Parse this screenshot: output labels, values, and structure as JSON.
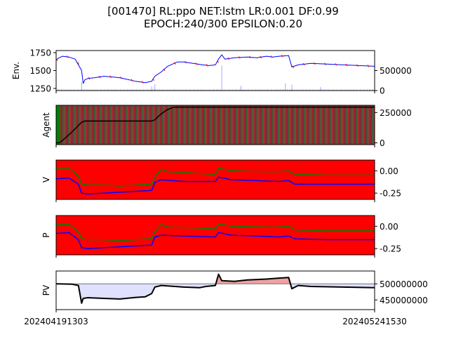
{
  "title_line1": "[001470] RL:ppo NET:lstm LR:0.001 DF:0.99",
  "title_line2": "EPOCH:240/300 EPSILON:0.20",
  "x_start_label": "202404191303",
  "x_end_label": "202405241530",
  "colors": {
    "red": "#ff0000",
    "green": "#008000",
    "blue": "#0000ff",
    "black": "#000000",
    "lavender": "#e0e0ff",
    "salmon": "#f0a0a0",
    "gray": "#808080"
  },
  "chart_data": [
    {
      "type": "line",
      "ylabel": "Env.",
      "left_ticks": [
        "1750",
        "1500",
        "1250"
      ],
      "left_ylim": [
        1220,
        1780
      ],
      "right_ticks": [
        "500000",
        "0"
      ],
      "right_ylim": [
        0,
        1000000
      ],
      "price_points": [
        [
          0,
          1650
        ],
        [
          0.01,
          1680
        ],
        [
          0.02,
          1700
        ],
        [
          0.04,
          1690
        ],
        [
          0.06,
          1660
        ],
        [
          0.07,
          1580
        ],
        [
          0.08,
          1500
        ],
        [
          0.085,
          1320
        ],
        [
          0.09,
          1370
        ],
        [
          0.1,
          1390
        ],
        [
          0.12,
          1400
        ],
        [
          0.15,
          1420
        ],
        [
          0.18,
          1410
        ],
        [
          0.2,
          1400
        ],
        [
          0.22,
          1380
        ],
        [
          0.25,
          1350
        ],
        [
          0.28,
          1330
        ],
        [
          0.3,
          1350
        ],
        [
          0.31,
          1420
        ],
        [
          0.33,
          1480
        ],
        [
          0.35,
          1560
        ],
        [
          0.38,
          1620
        ],
        [
          0.4,
          1620
        ],
        [
          0.43,
          1600
        ],
        [
          0.46,
          1580
        ],
        [
          0.48,
          1570
        ],
        [
          0.5,
          1580
        ],
        [
          0.51,
          1660
        ],
        [
          0.52,
          1720
        ],
        [
          0.53,
          1660
        ],
        [
          0.56,
          1680
        ],
        [
          0.6,
          1690
        ],
        [
          0.63,
          1680
        ],
        [
          0.66,
          1700
        ],
        [
          0.68,
          1690
        ],
        [
          0.7,
          1700
        ],
        [
          0.73,
          1710
        ],
        [
          0.74,
          1550
        ],
        [
          0.76,
          1580
        ],
        [
          0.8,
          1600
        ],
        [
          0.85,
          1590
        ],
        [
          0.9,
          1580
        ],
        [
          0.95,
          1570
        ],
        [
          1,
          1560
        ]
      ],
      "volume_spikes": [
        [
          0.08,
          220000
        ],
        [
          0.3,
          100000
        ],
        [
          0.31,
          160000
        ],
        [
          0.52,
          620000
        ],
        [
          0.58,
          120000
        ],
        [
          0.72,
          180000
        ],
        [
          0.74,
          150000
        ],
        [
          0.83,
          90000
        ]
      ]
    },
    {
      "type": "area",
      "ylabel": "Agent",
      "right_ticks": [
        "250000",
        "0"
      ],
      "right_ylim": [
        -15000,
        310000
      ],
      "position_points": [
        [
          0,
          0
        ],
        [
          0.01,
          0
        ],
        [
          0.02,
          20000
        ],
        [
          0.05,
          90000
        ],
        [
          0.08,
          170000
        ],
        [
          0.09,
          180000
        ],
        [
          0.3,
          180000
        ],
        [
          0.31,
          190000
        ],
        [
          0.33,
          240000
        ],
        [
          0.35,
          275000
        ],
        [
          0.37,
          295000
        ],
        [
          0.5,
          295000
        ],
        [
          1,
          295000
        ]
      ]
    },
    {
      "type": "line",
      "ylabel": "V",
      "right_ticks": [
        "0.00",
        "-0.25"
      ],
      "ylim": [
        -0.32,
        0.12
      ],
      "series": [
        {
          "points": [
            [
              0,
              0.03
            ],
            [
              0.04,
              0.03
            ],
            [
              0.07,
              -0.06
            ],
            [
              0.08,
              -0.15
            ],
            [
              0.1,
              -0.16
            ],
            [
              0.15,
              -0.16
            ],
            [
              0.2,
              -0.17
            ],
            [
              0.25,
              -0.16
            ],
            [
              0.3,
              -0.15
            ],
            [
              0.31,
              -0.07
            ],
            [
              0.33,
              0.02
            ],
            [
              0.35,
              -0.01
            ],
            [
              0.45,
              -0.03
            ],
            [
              0.5,
              -0.04
            ],
            [
              0.51,
              0.03
            ],
            [
              0.55,
              0.0
            ],
            [
              0.65,
              -0.01
            ],
            [
              0.7,
              -0.01
            ],
            [
              0.73,
              0.0
            ],
            [
              0.75,
              -0.04
            ],
            [
              0.85,
              -0.05
            ],
            [
              0.95,
              -0.05
            ],
            [
              1,
              -0.05
            ]
          ]
        },
        {
          "points": [
            [
              0,
              -0.09
            ],
            [
              0.04,
              -0.08
            ],
            [
              0.07,
              -0.15
            ],
            [
              0.08,
              -0.25
            ],
            [
              0.1,
              -0.26
            ],
            [
              0.2,
              -0.24
            ],
            [
              0.3,
              -0.22
            ],
            [
              0.31,
              -0.13
            ],
            [
              0.33,
              -0.1
            ],
            [
              0.4,
              -0.12
            ],
            [
              0.5,
              -0.12
            ],
            [
              0.51,
              -0.07
            ],
            [
              0.55,
              -0.1
            ],
            [
              0.7,
              -0.12
            ],
            [
              0.73,
              -0.11
            ],
            [
              0.75,
              -0.15
            ],
            [
              0.85,
              -0.15
            ],
            [
              0.95,
              -0.15
            ],
            [
              1,
              -0.15
            ]
          ]
        }
      ]
    },
    {
      "type": "line",
      "ylabel": "P",
      "right_ticks": [
        "0.00",
        "-0.25"
      ],
      "ylim": [
        -0.32,
        0.12
      ],
      "series": [
        {
          "points": [
            [
              0,
              0.02
            ],
            [
              0.04,
              0.02
            ],
            [
              0.07,
              -0.06
            ],
            [
              0.08,
              -0.14
            ],
            [
              0.1,
              -0.15
            ],
            [
              0.15,
              -0.15
            ],
            [
              0.2,
              -0.16
            ],
            [
              0.25,
              -0.15
            ],
            [
              0.3,
              -0.14
            ],
            [
              0.31,
              -0.06
            ],
            [
              0.33,
              0.02
            ],
            [
              0.35,
              -0.01
            ],
            [
              0.45,
              -0.02
            ],
            [
              0.5,
              -0.03
            ],
            [
              0.51,
              0.03
            ],
            [
              0.55,
              0.0
            ],
            [
              0.65,
              -0.01
            ],
            [
              0.7,
              -0.01
            ],
            [
              0.73,
              0.0
            ],
            [
              0.75,
              -0.04
            ],
            [
              0.85,
              -0.05
            ],
            [
              0.95,
              -0.05
            ],
            [
              1,
              -0.05
            ]
          ]
        },
        {
          "points": [
            [
              0,
              -0.08
            ],
            [
              0.04,
              -0.07
            ],
            [
              0.07,
              -0.15
            ],
            [
              0.08,
              -0.24
            ],
            [
              0.1,
              -0.25
            ],
            [
              0.2,
              -0.23
            ],
            [
              0.3,
              -0.21
            ],
            [
              0.31,
              -0.12
            ],
            [
              0.33,
              -0.1
            ],
            [
              0.4,
              -0.11
            ],
            [
              0.5,
              -0.12
            ],
            [
              0.51,
              -0.07
            ],
            [
              0.55,
              -0.1
            ],
            [
              0.7,
              -0.12
            ],
            [
              0.73,
              -0.11
            ],
            [
              0.75,
              -0.14
            ],
            [
              0.85,
              -0.15
            ],
            [
              0.95,
              -0.15
            ],
            [
              1,
              -0.15
            ]
          ]
        }
      ]
    },
    {
      "type": "line",
      "ylabel": "PV",
      "right_ticks": [
        "500000000",
        "450000000"
      ],
      "ylim": [
        420000000,
        540000000
      ],
      "baseline": 500000000,
      "pv_points": [
        [
          0,
          500000000
        ],
        [
          0.05,
          499000000
        ],
        [
          0.07,
          495000000
        ],
        [
          0.08,
          440000000
        ],
        [
          0.085,
          455000000
        ],
        [
          0.1,
          457000000
        ],
        [
          0.15,
          455000000
        ],
        [
          0.2,
          453000000
        ],
        [
          0.25,
          458000000
        ],
        [
          0.28,
          460000000
        ],
        [
          0.3,
          470000000
        ],
        [
          0.31,
          490000000
        ],
        [
          0.33,
          495000000
        ],
        [
          0.4,
          490000000
        ],
        [
          0.45,
          488000000
        ],
        [
          0.47,
          492000000
        ],
        [
          0.5,
          495000000
        ],
        [
          0.51,
          530000000
        ],
        [
          0.52,
          510000000
        ],
        [
          0.56,
          508000000
        ],
        [
          0.6,
          512000000
        ],
        [
          0.66,
          515000000
        ],
        [
          0.7,
          518000000
        ],
        [
          0.73,
          520000000
        ],
        [
          0.74,
          485000000
        ],
        [
          0.76,
          495000000
        ],
        [
          0.8,
          492000000
        ],
        [
          0.9,
          490000000
        ],
        [
          1,
          488000000
        ]
      ]
    }
  ]
}
